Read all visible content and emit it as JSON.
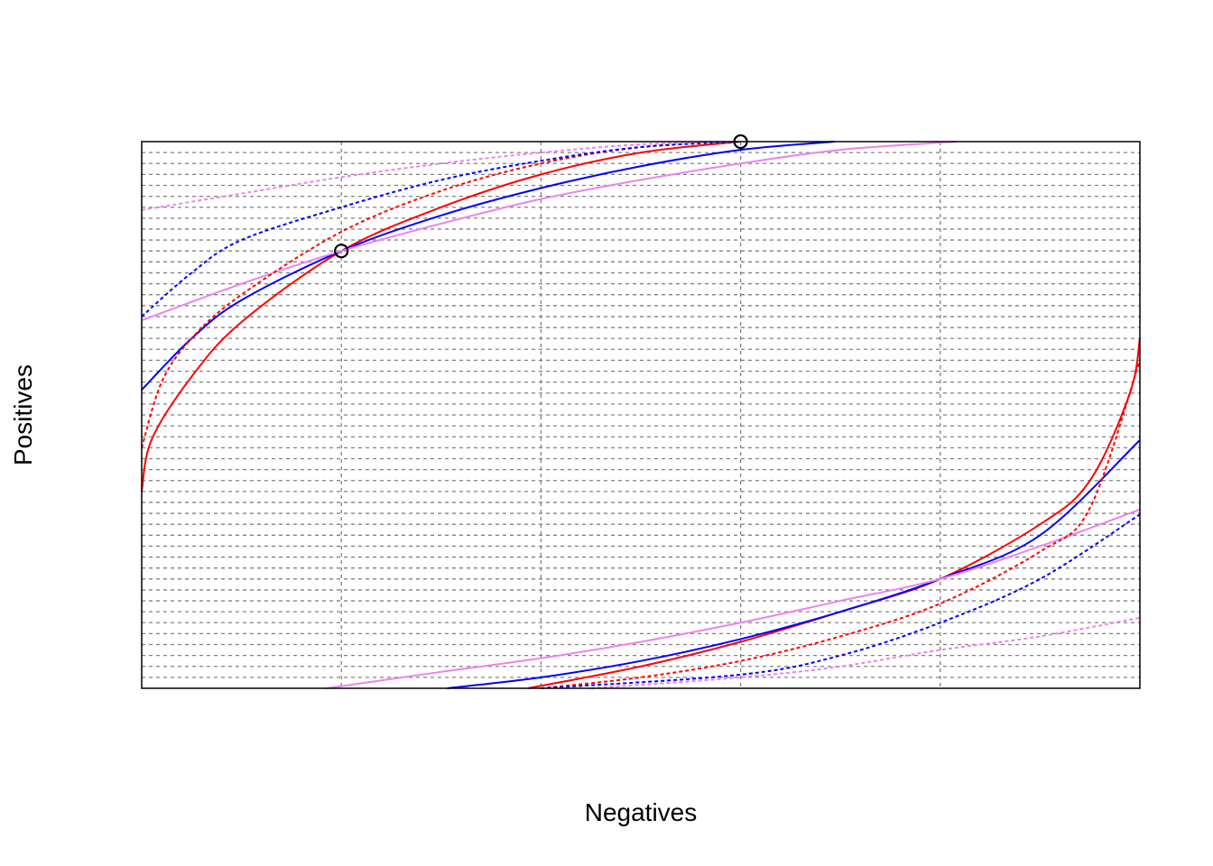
{
  "chart_data": {
    "type": "line",
    "title": "",
    "xlabel": "Negatives",
    "ylabel": "Positives",
    "xlim": [
      0,
      1
    ],
    "ylim": [
      0,
      1
    ],
    "grid": {
      "vertical_step": 0.2,
      "horizontal_step": 0.02,
      "style": "dotted",
      "color": "#808080"
    },
    "axes_ticks_shown": false,
    "series": [
      {
        "color": "#ff0000",
        "dash": "solid",
        "points": [
          [
            0,
            0.36
          ],
          [
            0.01,
            0.455
          ],
          [
            0.05,
            0.57
          ],
          [
            0.1,
            0.67
          ],
          [
            0.2,
            0.8
          ],
          [
            0.3,
            0.88
          ],
          [
            0.4,
            0.94
          ],
          [
            0.5,
            0.98
          ],
          [
            0.6,
            1.0
          ]
        ]
      },
      {
        "color": "#0000ff",
        "dash": "solid",
        "points": [
          [
            0,
            0.546
          ],
          [
            0.05,
            0.64
          ],
          [
            0.1,
            0.71
          ],
          [
            0.2,
            0.8
          ],
          [
            0.3,
            0.865
          ],
          [
            0.4,
            0.915
          ],
          [
            0.5,
            0.955
          ],
          [
            0.6,
            0.985
          ],
          [
            0.694,
            1.0
          ]
        ]
      },
      {
        "color": "#ee82ee",
        "dash": "solid",
        "points": [
          [
            0,
            0.673
          ],
          [
            0.1,
            0.74
          ],
          [
            0.2,
            0.8
          ],
          [
            0.3,
            0.85
          ],
          [
            0.4,
            0.895
          ],
          [
            0.5,
            0.93
          ],
          [
            0.6,
            0.96
          ],
          [
            0.7,
            0.985
          ],
          [
            0.816,
            1.0
          ]
        ]
      },
      {
        "color": "#ff0000",
        "dash": "dotted",
        "points": [
          [
            0,
            0.44
          ],
          [
            0.02,
            0.56
          ],
          [
            0.05,
            0.64
          ],
          [
            0.1,
            0.72
          ],
          [
            0.2,
            0.835
          ],
          [
            0.3,
            0.91
          ],
          [
            0.4,
            0.96
          ],
          [
            0.5,
            0.99
          ],
          [
            0.6,
            1.0
          ]
        ]
      },
      {
        "color": "#0000ff",
        "dash": "dotted",
        "points": [
          [
            0,
            0.68
          ],
          [
            0.05,
            0.76
          ],
          [
            0.1,
            0.82
          ],
          [
            0.2,
            0.88
          ],
          [
            0.3,
            0.93
          ],
          [
            0.4,
            0.965
          ],
          [
            0.5,
            0.99
          ],
          [
            0.6,
            1.0
          ]
        ]
      },
      {
        "color": "#ee82ee",
        "dash": "dotted",
        "points": [
          [
            0,
            0.875
          ],
          [
            0.1,
            0.905
          ],
          [
            0.2,
            0.935
          ],
          [
            0.3,
            0.96
          ],
          [
            0.4,
            0.98
          ],
          [
            0.5,
            0.995
          ],
          [
            0.6,
            1.0
          ]
        ]
      },
      {
        "color": "#ff0000",
        "dash": "solid",
        "points": [
          [
            0.387,
            0
          ],
          [
            0.5,
            0.04
          ],
          [
            0.6,
            0.085
          ],
          [
            0.7,
            0.14
          ],
          [
            0.8,
            0.2
          ],
          [
            0.9,
            0.3
          ],
          [
            0.95,
            0.38
          ],
          [
            0.99,
            0.54
          ],
          [
            1,
            0.64
          ]
        ]
      },
      {
        "color": "#0000ff",
        "dash": "solid",
        "points": [
          [
            0.306,
            0
          ],
          [
            0.4,
            0.02
          ],
          [
            0.5,
            0.05
          ],
          [
            0.6,
            0.09
          ],
          [
            0.7,
            0.14
          ],
          [
            0.8,
            0.2
          ],
          [
            0.9,
            0.28
          ],
          [
            1,
            0.454
          ]
        ]
      },
      {
        "color": "#ee82ee",
        "dash": "solid",
        "points": [
          [
            0.185,
            0
          ],
          [
            0.3,
            0.03
          ],
          [
            0.4,
            0.055
          ],
          [
            0.5,
            0.085
          ],
          [
            0.6,
            0.12
          ],
          [
            0.7,
            0.16
          ],
          [
            0.8,
            0.2
          ],
          [
            0.9,
            0.26
          ],
          [
            1,
            0.327
          ]
        ]
      },
      {
        "color": "#ff0000",
        "dash": "dotted",
        "points": [
          [
            0.4,
            0
          ],
          [
            0.5,
            0.02
          ],
          [
            0.6,
            0.05
          ],
          [
            0.7,
            0.095
          ],
          [
            0.8,
            0.155
          ],
          [
            0.9,
            0.25
          ],
          [
            0.95,
            0.33
          ],
          [
            1,
            0.6
          ]
        ]
      },
      {
        "color": "#0000ff",
        "dash": "dotted",
        "points": [
          [
            0.4,
            0
          ],
          [
            0.6,
            0.025
          ],
          [
            0.7,
            0.06
          ],
          [
            0.8,
            0.12
          ],
          [
            0.9,
            0.2
          ],
          [
            1,
            0.318
          ]
        ]
      },
      {
        "color": "#ee82ee",
        "dash": "dotted",
        "points": [
          [
            0.45,
            0
          ],
          [
            0.6,
            0.02
          ],
          [
            0.7,
            0.04
          ],
          [
            0.8,
            0.07
          ],
          [
            0.9,
            0.095
          ],
          [
            1,
            0.129
          ]
        ]
      }
    ],
    "markers": [
      {
        "x": 0.2,
        "y": 0.8,
        "shape": "open-circle",
        "color": "#000000"
      },
      {
        "x": 0.6,
        "y": 1.0,
        "shape": "open-circle",
        "color": "#000000"
      }
    ]
  }
}
